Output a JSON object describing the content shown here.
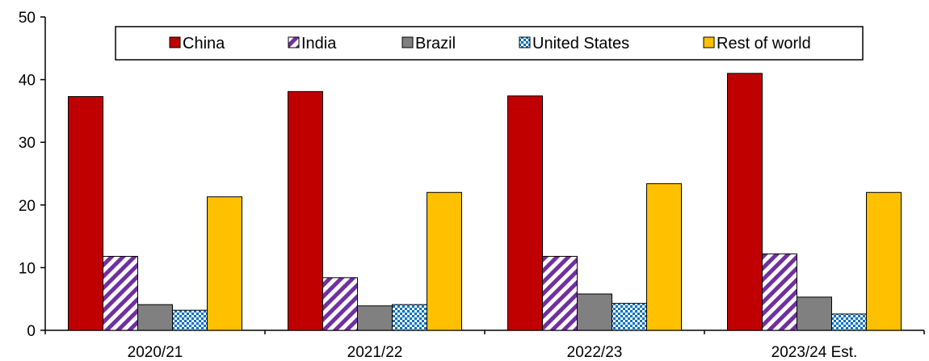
{
  "chart_data": {
    "type": "bar",
    "categories": [
      "2020/21",
      "2021/22",
      "2022/23",
      "2023/24 Est."
    ],
    "series": [
      {
        "name": "China",
        "values": [
          37.3,
          38.1,
          37.4,
          41.0
        ],
        "color": "#c00000",
        "pattern": "solid"
      },
      {
        "name": "India",
        "values": [
          11.8,
          8.4,
          11.8,
          12.2
        ],
        "color": "#7030a0",
        "pattern": "diagonal-stripes"
      },
      {
        "name": "Brazil",
        "values": [
          4.1,
          3.9,
          5.8,
          5.3
        ],
        "color": "#808080",
        "pattern": "solid"
      },
      {
        "name": "United States",
        "values": [
          3.2,
          4.1,
          4.3,
          2.6
        ],
        "color": "#0070c0",
        "pattern": "checkerboard"
      },
      {
        "name": "Rest of world",
        "values": [
          21.3,
          22.0,
          23.4,
          22.0
        ],
        "color": "#ffc000",
        "pattern": "solid"
      }
    ],
    "ylim": [
      0,
      50
    ],
    "yticks": [
      "0",
      "10",
      "20",
      "30",
      "40",
      "50"
    ],
    "title": "",
    "xlabel": "",
    "ylabel": "",
    "grid": false,
    "legend_position": "top-center"
  }
}
